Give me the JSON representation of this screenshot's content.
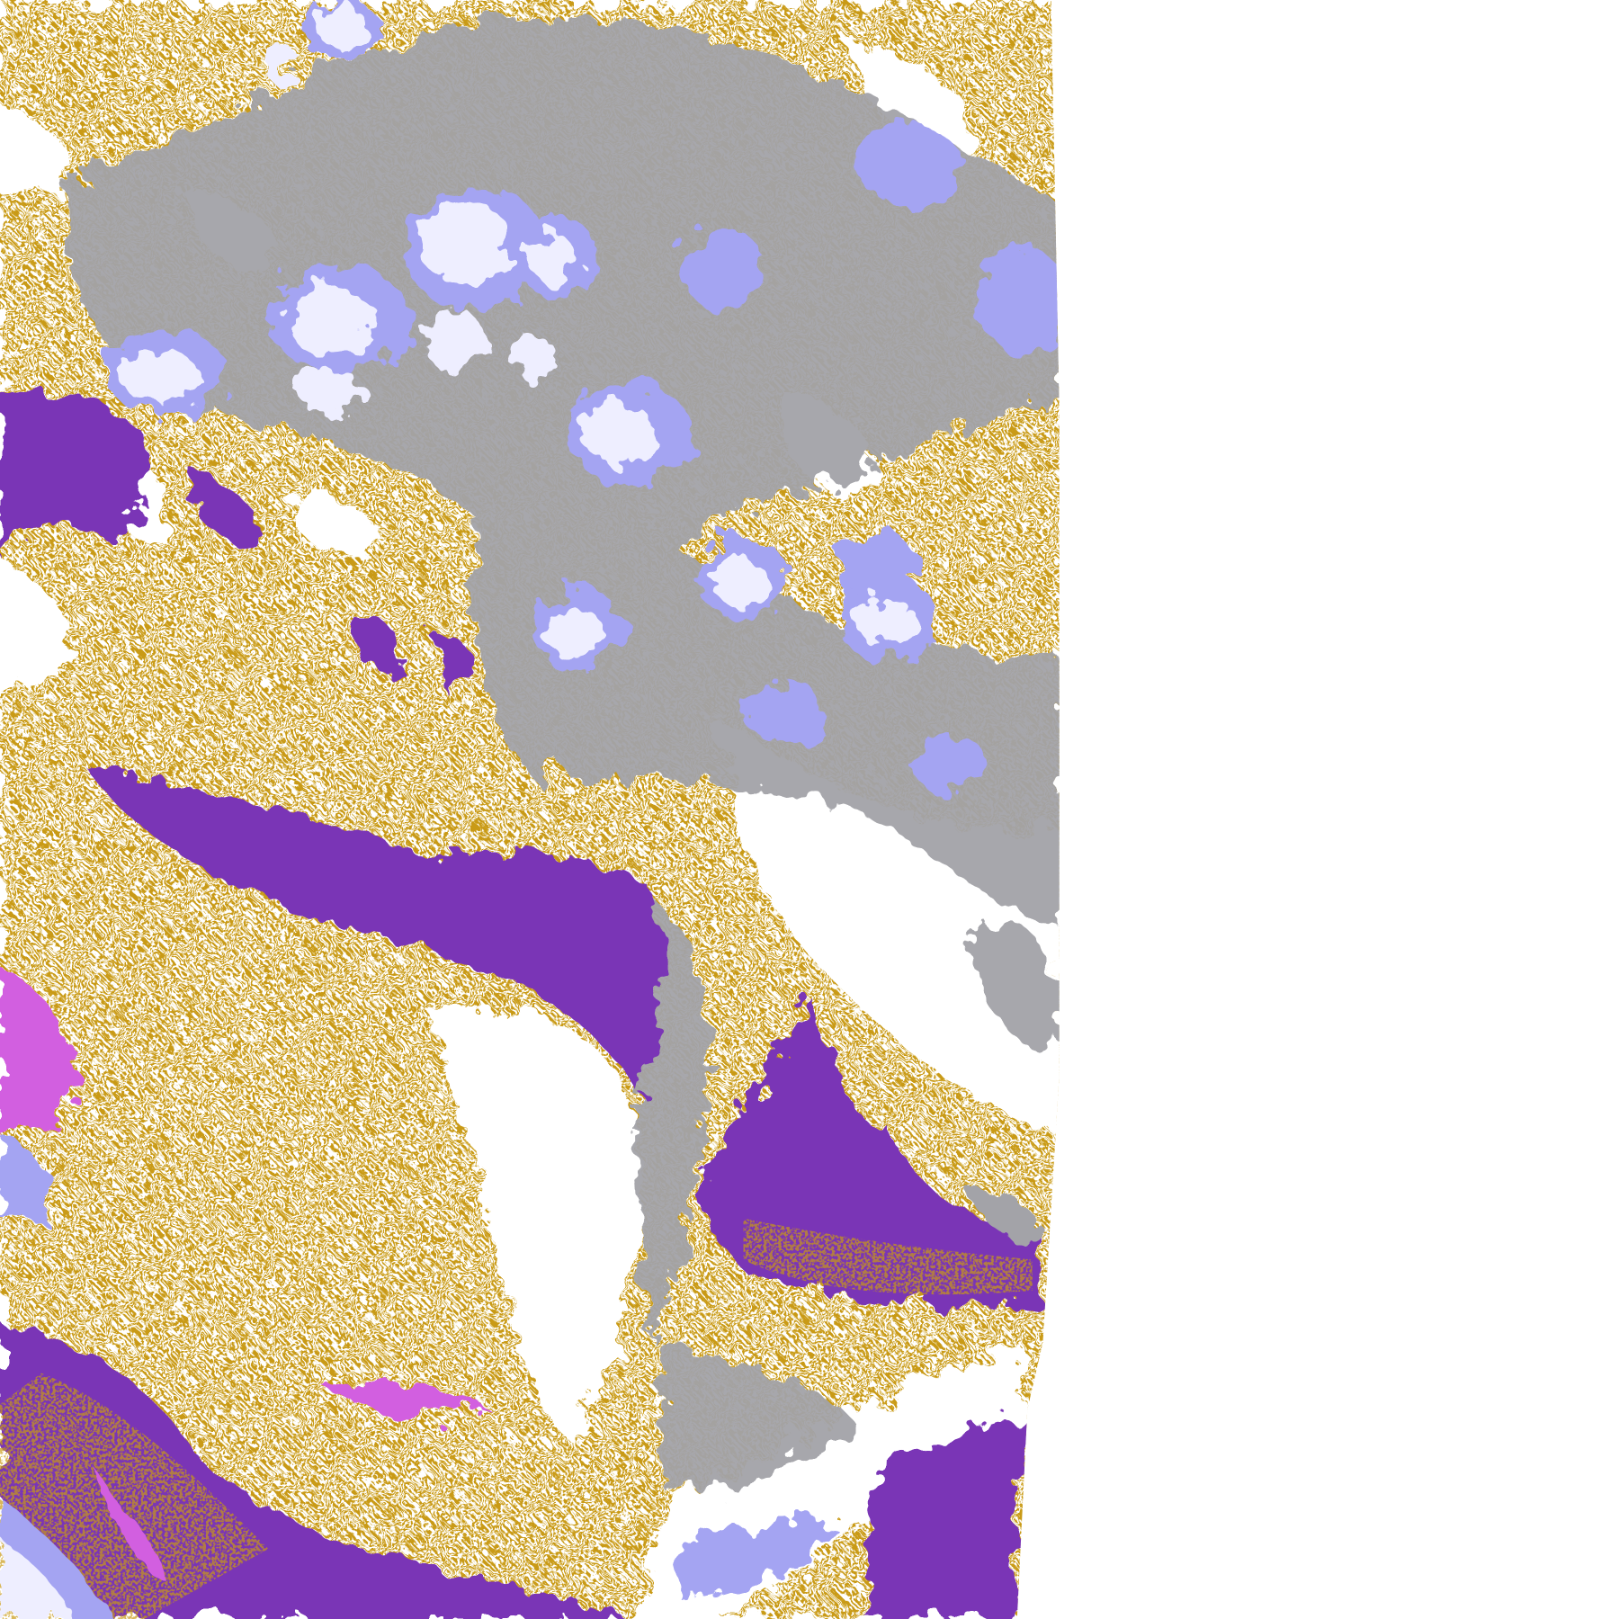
{
  "map": {
    "kind": "satellite cloud classification imagery",
    "colors": {
      "background": "#ffffff",
      "gold": "#c99a12",
      "purple": "#7a36b6",
      "light_lavender": "#eeeeff",
      "periwinkle": "#a4a4f2",
      "gray": "#a3a3a8",
      "magenta": "#d25ee0"
    }
  }
}
